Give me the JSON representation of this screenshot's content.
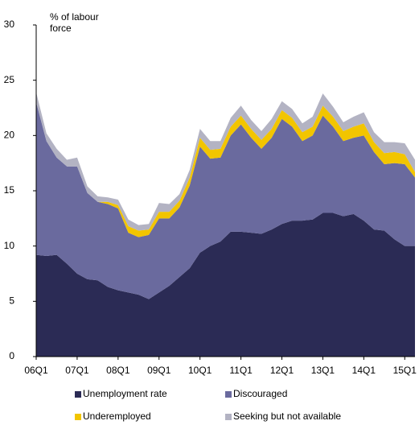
{
  "chart_data": {
    "type": "stacked_area",
    "y_label": "% of labour force",
    "categories": [
      "06Q1",
      null,
      null,
      null,
      "07Q1",
      null,
      null,
      null,
      "08Q1",
      null,
      null,
      null,
      "09Q1",
      null,
      null,
      null,
      "10Q1",
      null,
      null,
      null,
      "11Q1",
      null,
      null,
      null,
      "12Q1",
      null,
      null,
      null,
      "13Q1",
      null,
      null,
      null,
      "14Q1",
      null,
      null,
      null,
      "15Q1",
      null
    ],
    "series": [
      {
        "name": "Unemployment rate",
        "color": "#2b2b55",
        "values": [
          9.2,
          9.1,
          9.2,
          8.4,
          7.5,
          7.0,
          6.9,
          6.3,
          6.0,
          5.8,
          5.6,
          5.2,
          5.8,
          6.4,
          7.2,
          8.0,
          9.4,
          10.0,
          10.4,
          11.3,
          11.3,
          11.2,
          11.1,
          11.5,
          12.0,
          12.3,
          12.3,
          12.4,
          13.0,
          13.0,
          12.7,
          12.9,
          12.3,
          11.5,
          11.4,
          10.6,
          10.0,
          10.0
        ]
      },
      {
        "name": "Discouraged",
        "color": "#6a6a9e",
        "values": [
          13.8,
          10.4,
          8.8,
          8.8,
          9.7,
          7.8,
          7.1,
          7.5,
          7.4,
          5.4,
          5.2,
          5.8,
          6.7,
          6.1,
          6.3,
          7.5,
          9.6,
          7.9,
          7.6,
          8.7,
          9.7,
          8.6,
          7.7,
          8.3,
          9.5,
          8.5,
          7.2,
          7.6,
          8.8,
          7.8,
          6.8,
          6.9,
          7.7,
          7.0,
          6.0,
          6.9,
          7.4,
          6.2
        ]
      },
      {
        "name": "Underemployed",
        "color": "#f2c500",
        "values": [
          0,
          0,
          0,
          0,
          0,
          0,
          0,
          0.2,
          0.3,
          0.6,
          0.6,
          0.5,
          0.6,
          0.6,
          0.6,
          0.7,
          0.8,
          0.8,
          0.8,
          0.8,
          0.8,
          0.8,
          0.8,
          0.8,
          0.8,
          0.8,
          0.8,
          0.8,
          0.9,
          0.9,
          0.9,
          1.0,
          1.1,
          0.9,
          1.0,
          1.0,
          0.9,
          0.5
        ]
      },
      {
        "name": "Seeking but not available",
        "color": "#b3b3c3",
        "values": [
          0.9,
          0.7,
          0.8,
          0.6,
          0.8,
          0.6,
          0.5,
          0.4,
          0.5,
          0.6,
          0.5,
          0.5,
          0.8,
          0.7,
          0.6,
          0.7,
          0.8,
          0.8,
          0.7,
          0.8,
          0.9,
          0.8,
          0.8,
          0.9,
          0.8,
          0.8,
          0.8,
          0.9,
          1.1,
          0.9,
          0.8,
          0.9,
          1.0,
          0.9,
          1.0,
          0.9,
          1.0,
          1.1
        ]
      }
    ],
    "ylim": [
      0,
      30
    ],
    "yticks": [
      0,
      5,
      10,
      15,
      20,
      25,
      30
    ],
    "grid": false
  }
}
